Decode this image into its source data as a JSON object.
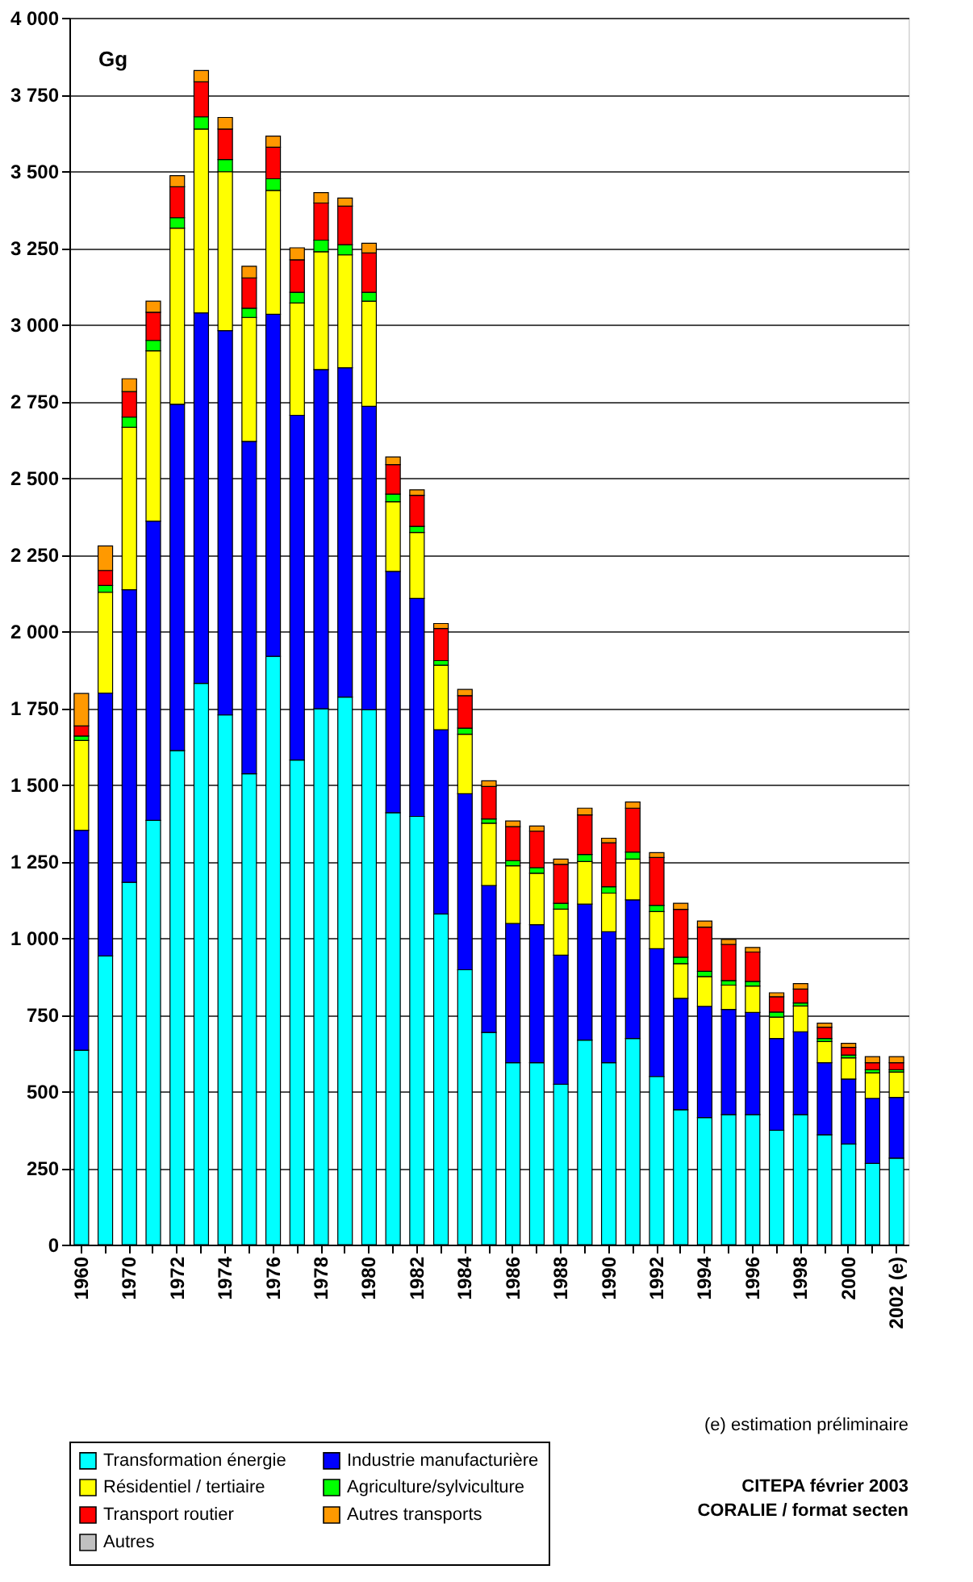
{
  "chart_data": {
    "type": "bar",
    "stacked": true,
    "ylabel": "Gg",
    "categories": [
      "1960",
      null,
      "1970",
      null,
      "1972",
      null,
      "1974",
      null,
      "1976",
      null,
      "1978",
      null,
      "1980",
      null,
      "1982",
      null,
      "1984",
      null,
      "1986",
      null,
      "1988",
      null,
      "1990",
      null,
      "1992",
      null,
      "1994",
      null,
      "1996",
      null,
      "1998",
      null,
      "2000",
      null,
      "2002 (e)"
    ],
    "series": [
      {
        "name": "Transformation énergie",
        "color": "#00ffff",
        "values": [
          634,
          941,
          1181,
          1383,
          1611,
          1830,
          1727,
          1535,
          1918,
          1580,
          1747,
          1785,
          1744,
          1408,
          1396,
          1078,
          896,
          692,
          593,
          593,
          523,
          667,
          593,
          672,
          548,
          440,
          414,
          424,
          424,
          373,
          424,
          358,
          328,
          265,
          282
        ]
      },
      {
        "name": "Industrie manufacturière",
        "color": "#0000ff",
        "values": [
          717,
          857,
          954,
          976,
          1129,
          1208,
          1253,
          1084,
          1115,
          1124,
          1106,
          1074,
          989,
          787,
          711,
          601,
          574,
          479,
          454,
          450,
          421,
          443,
          427,
          452,
          417,
          363,
          363,
          343,
          333,
          299,
          270,
          235,
          212,
          212,
          198
        ]
      },
      {
        "name": "Résidentiel / tertiaire",
        "color": "#ffff00",
        "values": [
          293,
          329,
          530,
          555,
          574,
          599,
          518,
          404,
          404,
          366,
          384,
          368,
          343,
          227,
          215,
          210,
          194,
          203,
          188,
          168,
          150,
          139,
          126,
          133,
          121,
          113,
          97,
          79,
          86,
          70,
          84,
          69,
          69,
          83,
          83
        ]
      },
      {
        "name": "Agriculture/sylviculture",
        "color": "#00ff00",
        "values": [
          14,
          22,
          33,
          34,
          34,
          40,
          40,
          30,
          38,
          35,
          38,
          33,
          29,
          25,
          20,
          15,
          20,
          14,
          17,
          18,
          19,
          23,
          21,
          23,
          20,
          21,
          17,
          15,
          15,
          16,
          10,
          10,
          9,
          10,
          7
        ]
      },
      {
        "name": "Transport routier",
        "color": "#ff0000",
        "values": [
          33,
          49,
          83,
          92,
          101,
          114,
          99,
          99,
          103,
          106,
          121,
          126,
          128,
          96,
          101,
          105,
          106,
          106,
          111,
          119,
          127,
          129,
          143,
          143,
          156,
          156,
          144,
          118,
          96,
          50,
          45,
          37,
          25,
          23,
          23
        ]
      },
      {
        "name": "Autres transports",
        "color": "#ff9900",
        "values": [
          106,
          80,
          42,
          36,
          36,
          37,
          38,
          38,
          36,
          39,
          34,
          26,
          32,
          25,
          18,
          16,
          20,
          18,
          18,
          17,
          17,
          22,
          15,
          20,
          16,
          20,
          20,
          16,
          15,
          13,
          18,
          13,
          13,
          20,
          20
        ]
      },
      {
        "name": "Autres",
        "color": "#c0c0c0",
        "values": [
          null,
          null,
          null,
          null,
          null,
          null,
          null,
          null,
          null,
          null,
          null,
          null,
          null,
          null,
          null,
          null,
          null,
          null,
          null,
          null,
          null,
          null,
          null,
          null,
          null,
          null,
          null,
          null,
          null,
          null,
          null,
          null,
          null,
          null,
          null
        ]
      }
    ],
    "ylim": [
      0,
      4000
    ],
    "yticks": [
      0,
      250,
      500,
      750,
      {
        "value": 1000,
        "label": "1 000"
      },
      {
        "value": 1250,
        "label": "1 250"
      },
      {
        "value": 1500,
        "label": "1 500"
      },
      {
        "value": 1750,
        "label": "1 750"
      },
      {
        "value": 2000,
        "label": "2 000"
      },
      {
        "value": 2250,
        "label": "2 250"
      },
      {
        "value": 2500,
        "label": "2 500"
      },
      {
        "value": 2750,
        "label": "2 750"
      },
      {
        "value": 3000,
        "label": "3 000"
      },
      {
        "value": 3250,
        "label": "3 250"
      },
      {
        "value": 3500,
        "label": "3 500"
      },
      {
        "value": 3750,
        "label": "3 750"
      },
      {
        "value": 4000,
        "label": "4 000"
      }
    ],
    "grid": "y",
    "legend": "bottom",
    "annotations": [
      "(e) estimation préliminaire",
      "CITEPA février 2003",
      "CORALIE / format secten"
    ]
  }
}
